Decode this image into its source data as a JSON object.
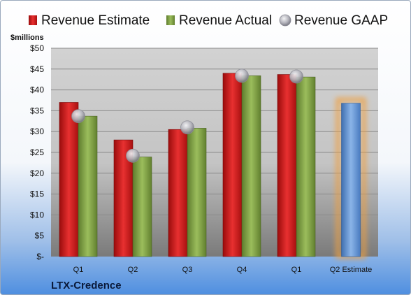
{
  "chart_data": {
    "type": "bar",
    "unit_label": "$millions",
    "company": "LTX-Credence",
    "categories": [
      "Q1",
      "Q2",
      "Q3",
      "Q4",
      "Q1",
      "Q2 Estimate"
    ],
    "series": [
      {
        "name": "Revenue Estimate",
        "color": "#d42020",
        "values": [
          37.0,
          28.0,
          30.5,
          44.0,
          43.7,
          null
        ]
      },
      {
        "name": "Revenue Actual",
        "color": "#8aab4f",
        "values": [
          33.7,
          23.9,
          30.8,
          43.4,
          43.1,
          null
        ]
      },
      {
        "name": "Revenue GAAP",
        "color": "#b8b8c0",
        "values": [
          33.7,
          24.2,
          31.0,
          43.4,
          43.2,
          null
        ]
      }
    ],
    "estimate": {
      "category": "Q2 Estimate",
      "value": 36.8,
      "color": "#6f9fd8",
      "glow": "#f0a040"
    },
    "yticks": [
      "$-",
      "$5",
      "$10",
      "$15",
      "$20",
      "$25",
      "$30",
      "$35",
      "$40",
      "$45",
      "$50"
    ],
    "ylim": [
      0,
      50
    ],
    "grid": true,
    "legend_position": "top"
  }
}
